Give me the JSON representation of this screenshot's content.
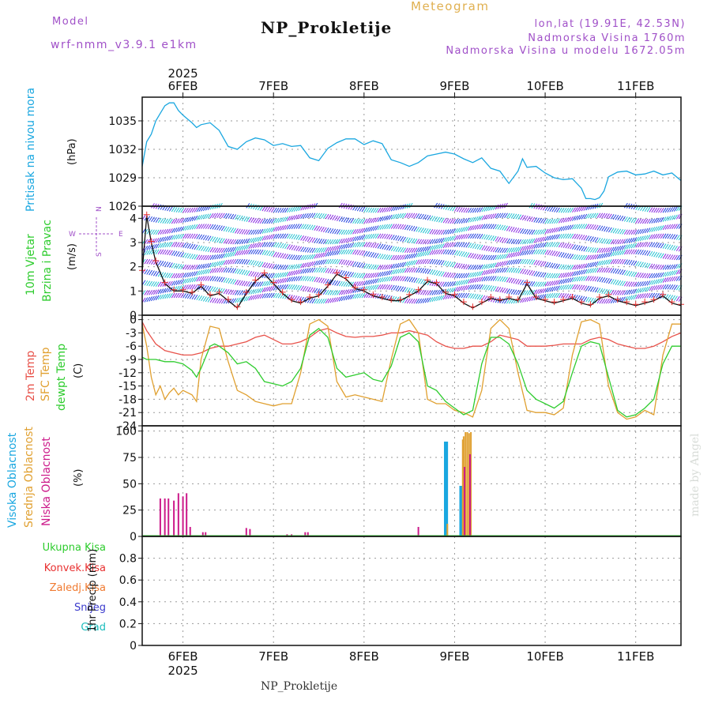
{
  "header": {
    "model_label": "Model",
    "model_name": "wrf-nmm_v3.9.1 e1km",
    "product": "Meteogram",
    "station": "NP_Prokletije",
    "lonlat": "lon,lat (19.91E, 42.53N)",
    "elevation": "Nadmorska Visina 1760m",
    "model_elevation": "Nadmorska Visina u modelu 1672.05m"
  },
  "footer": {
    "station": "NP_Prokletije"
  },
  "watermark": "made by Angel",
  "time_axis": {
    "year": "2025",
    "labels": [
      "6FEB",
      "7FEB",
      "8FEB",
      "9FEB",
      "10FEB",
      "11FEB"
    ],
    "day_positions": [
      6,
      7,
      8,
      9,
      10,
      11
    ],
    "range": [
      5.55,
      11.5
    ]
  },
  "colors": {
    "pressure": "#1aa7e0",
    "t2m": "#e8524a",
    "sfc": "#e0a030",
    "dew": "#2ecc2e",
    "wind_speed": "#111111",
    "gust_marker": "#e83030",
    "high_cloud": "#1aa7e0",
    "mid_cloud": "#e0a030",
    "low_cloud": "#cc1a8a",
    "total_rain": "#2ecc2e",
    "conv_rain": "#e83030",
    "freezing_rain": "#f07a30",
    "snow": "#3a3acc",
    "hail": "#1abcbc",
    "barb_purple": "#8a2be2",
    "barb_blue": "#2040e0",
    "barb_cyan": "#20c0d0"
  },
  "chart_data": [
    {
      "type": "line",
      "panel": "pressure",
      "title": "Pritisak na nivou mora",
      "ylabel": "(hPa)",
      "ylim": [
        1026,
        1037.5
      ],
      "yticks": [
        1026,
        1029,
        1032,
        1035
      ],
      "grid": true,
      "series": [
        {
          "name": "Pritisak na nivou mora",
          "x": [
            5.55,
            5.6,
            5.65,
            5.7,
            5.75,
            5.8,
            5.85,
            5.9,
            5.95,
            6.0,
            6.05,
            6.1,
            6.15,
            6.2,
            6.3,
            6.4,
            6.5,
            6.6,
            6.7,
            6.8,
            6.9,
            7.0,
            7.1,
            7.2,
            7.3,
            7.4,
            7.5,
            7.6,
            7.7,
            7.8,
            7.9,
            8.0,
            8.1,
            8.2,
            8.3,
            8.4,
            8.5,
            8.6,
            8.7,
            8.8,
            8.9,
            9.0,
            9.1,
            9.2,
            9.3,
            9.4,
            9.5,
            9.6,
            9.7,
            9.75,
            9.8,
            9.9,
            10.0,
            10.1,
            10.2,
            10.3,
            10.4,
            10.45,
            10.5,
            10.55,
            10.6,
            10.65,
            10.7,
            10.8,
            10.9,
            11.0,
            11.1,
            11.2,
            11.3,
            11.4,
            11.5
          ],
          "y": [
            1030.2,
            1032.8,
            1033.6,
            1035.0,
            1035.8,
            1036.6,
            1036.9,
            1036.9,
            1036.1,
            1035.6,
            1035.2,
            1034.8,
            1034.3,
            1034.6,
            1034.8,
            1034.0,
            1032.3,
            1032.0,
            1032.8,
            1033.2,
            1033.0,
            1032.4,
            1032.6,
            1032.3,
            1032.4,
            1031.1,
            1030.8,
            1032.1,
            1032.7,
            1033.1,
            1033.1,
            1032.5,
            1032.9,
            1032.6,
            1030.9,
            1030.6,
            1030.2,
            1030.6,
            1031.3,
            1031.5,
            1031.7,
            1031.5,
            1031.0,
            1030.6,
            1031.1,
            1030.0,
            1029.7,
            1028.4,
            1029.7,
            1031.0,
            1030.1,
            1030.2,
            1029.5,
            1029.0,
            1028.8,
            1028.9,
            1027.9,
            1026.8,
            1026.8,
            1026.7,
            1026.9,
            1027.6,
            1029.1,
            1029.6,
            1029.7,
            1029.3,
            1029.4,
            1029.7,
            1029.3,
            1029.5,
            1028.7
          ]
        }
      ]
    },
    {
      "type": "line",
      "panel": "wind",
      "title": "10m Vjetar Brzina i Pravac",
      "ylabel": "(m/s)",
      "ylim": [
        0,
        4.5
      ],
      "yticks": [
        0,
        1,
        2,
        3,
        4
      ],
      "direction_legend": {
        "north": "N",
        "west": "W",
        "east": "E",
        "south": "S"
      },
      "grid": true,
      "series": [
        {
          "name": "wind_speed",
          "x": [
            5.55,
            5.6,
            5.65,
            5.7,
            5.8,
            5.9,
            6.0,
            6.1,
            6.2,
            6.3,
            6.4,
            6.5,
            6.6,
            6.7,
            6.8,
            6.9,
            7.0,
            7.1,
            7.2,
            7.3,
            7.4,
            7.5,
            7.6,
            7.7,
            7.8,
            7.9,
            8.0,
            8.1,
            8.2,
            8.3,
            8.4,
            8.5,
            8.6,
            8.7,
            8.8,
            8.9,
            9.0,
            9.1,
            9.2,
            9.3,
            9.4,
            9.5,
            9.6,
            9.7,
            9.8,
            9.9,
            10.0,
            10.1,
            10.2,
            10.3,
            10.4,
            10.5,
            10.6,
            10.7,
            10.8,
            10.9,
            11.0,
            11.1,
            11.2,
            11.3,
            11.4,
            11.5
          ],
          "y": [
            1.8,
            4.1,
            3.0,
            2.2,
            1.3,
            1.0,
            1.0,
            0.9,
            1.2,
            0.8,
            0.9,
            0.6,
            0.3,
            0.9,
            1.4,
            1.7,
            1.3,
            0.9,
            0.6,
            0.5,
            0.7,
            0.8,
            1.2,
            1.7,
            1.5,
            1.1,
            1.0,
            0.8,
            0.7,
            0.6,
            0.6,
            0.8,
            1.0,
            1.4,
            1.3,
            0.9,
            0.8,
            0.5,
            0.3,
            0.5,
            0.7,
            0.6,
            0.7,
            0.6,
            1.3,
            0.7,
            0.6,
            0.5,
            0.6,
            0.7,
            0.5,
            0.4,
            0.7,
            0.8,
            0.6,
            0.5,
            0.4,
            0.5,
            0.6,
            0.8,
            0.5,
            0.4
          ]
        }
      ]
    },
    {
      "type": "line",
      "panel": "temperature",
      "ylabel": "(C)",
      "ylim": [
        -24,
        1
      ],
      "yticks": [
        0,
        -3,
        -6,
        -9,
        -12,
        -15,
        -18,
        -21,
        -24
      ],
      "grid": true,
      "series": [
        {
          "name": "2m Temp",
          "x": [
            5.55,
            5.6,
            5.7,
            5.8,
            5.9,
            6.0,
            6.1,
            6.2,
            6.3,
            6.4,
            6.5,
            6.6,
            6.7,
            6.8,
            6.9,
            7.0,
            7.1,
            7.2,
            7.3,
            7.4,
            7.5,
            7.6,
            7.7,
            7.8,
            7.9,
            8.0,
            8.1,
            8.2,
            8.3,
            8.4,
            8.5,
            8.6,
            8.7,
            8.8,
            8.9,
            9.0,
            9.1,
            9.2,
            9.3,
            9.4,
            9.5,
            9.6,
            9.7,
            9.8,
            9.9,
            10.0,
            10.1,
            10.2,
            10.3,
            10.4,
            10.5,
            10.6,
            10.7,
            10.8,
            10.9,
            11.0,
            11.1,
            11.2,
            11.3,
            11.4,
            11.5
          ],
          "y": [
            -0.5,
            -2.5,
            -5.5,
            -7.0,
            -7.5,
            -8.0,
            -8.0,
            -7.5,
            -6.5,
            -6.0,
            -6.0,
            -5.5,
            -5.0,
            -4.0,
            -3.5,
            -4.5,
            -5.5,
            -5.5,
            -5.0,
            -4.0,
            -2.5,
            -2.0,
            -3.0,
            -3.8,
            -4.0,
            -3.8,
            -3.8,
            -3.5,
            -3.0,
            -3.0,
            -2.5,
            -3.0,
            -3.5,
            -5.0,
            -6.0,
            -6.5,
            -6.5,
            -6.0,
            -6.0,
            -5.0,
            -3.5,
            -4.0,
            -4.5,
            -6.0,
            -6.0,
            -6.0,
            -5.8,
            -5.5,
            -5.5,
            -5.5,
            -4.5,
            -4.0,
            -4.5,
            -5.5,
            -6.0,
            -6.5,
            -6.5,
            -6.0,
            -5.0,
            -3.8,
            -3.0
          ]
        },
        {
          "name": "SFC Temp",
          "x": [
            5.55,
            5.6,
            5.65,
            5.7,
            5.75,
            5.8,
            5.85,
            5.9,
            5.95,
            6.0,
            6.1,
            6.15,
            6.2,
            6.3,
            6.4,
            6.5,
            6.6,
            6.7,
            6.8,
            6.9,
            7.0,
            7.1,
            7.2,
            7.3,
            7.4,
            7.5,
            7.6,
            7.7,
            7.8,
            7.9,
            8.0,
            8.1,
            8.2,
            8.3,
            8.4,
            8.5,
            8.6,
            8.7,
            8.8,
            8.9,
            9.0,
            9.1,
            9.2,
            9.3,
            9.4,
            9.5,
            9.6,
            9.7,
            9.8,
            9.9,
            10.0,
            10.1,
            10.2,
            10.3,
            10.4,
            10.5,
            10.6,
            10.7,
            10.8,
            10.9,
            11.0,
            11.1,
            11.2,
            11.3,
            11.4,
            11.5
          ],
          "y": [
            -1.0,
            -6.0,
            -13.0,
            -17.0,
            -15.0,
            -18.0,
            -16.5,
            -15.5,
            -17.0,
            -16.0,
            -17.0,
            -18.5,
            -9.0,
            -1.5,
            -2.0,
            -9.5,
            -16.0,
            -17.0,
            -18.5,
            -19.0,
            -19.5,
            -19.0,
            -19.0,
            -12.0,
            -1.0,
            0.0,
            -1.5,
            -14.0,
            -17.5,
            -17.0,
            -17.5,
            -18.0,
            -18.5,
            -9.0,
            -1.0,
            0.0,
            -3.0,
            -18.0,
            -19.0,
            -19.0,
            -20.5,
            -21.0,
            -22.0,
            -16.0,
            -2.0,
            0.0,
            -2.0,
            -12.0,
            -20.5,
            -21.0,
            -21.0,
            -21.5,
            -20.0,
            -8.0,
            -0.5,
            0.0,
            -1.0,
            -15.0,
            -21.0,
            -22.5,
            -22.0,
            -20.5,
            -21.5,
            -8.0,
            -1.0,
            -1.0
          ]
        },
        {
          "name": "dewpt Temp",
          "x": [
            5.55,
            5.6,
            5.7,
            5.8,
            5.9,
            6.0,
            6.1,
            6.15,
            6.2,
            6.3,
            6.35,
            6.4,
            6.5,
            6.6,
            6.7,
            6.8,
            6.9,
            7.0,
            7.1,
            7.2,
            7.3,
            7.4,
            7.5,
            7.6,
            7.7,
            7.8,
            7.9,
            8.0,
            8.1,
            8.2,
            8.3,
            8.4,
            8.5,
            8.6,
            8.7,
            8.8,
            8.9,
            9.0,
            9.1,
            9.2,
            9.3,
            9.4,
            9.5,
            9.6,
            9.7,
            9.8,
            9.9,
            10.0,
            10.1,
            10.2,
            10.3,
            10.4,
            10.5,
            10.6,
            10.7,
            10.8,
            10.9,
            11.0,
            11.1,
            11.2,
            11.3,
            11.4,
            11.5
          ],
          "y": [
            -8.5,
            -9.0,
            -9.0,
            -9.5,
            -9.5,
            -10.0,
            -11.5,
            -13.0,
            -11.0,
            -6.0,
            -5.5,
            -6.0,
            -7.5,
            -10.0,
            -9.5,
            -11.0,
            -14.0,
            -14.5,
            -15.0,
            -14.0,
            -11.0,
            -3.5,
            -2.0,
            -4.0,
            -11.0,
            -13.0,
            -12.5,
            -12.0,
            -13.5,
            -14.0,
            -10.5,
            -4.0,
            -3.0,
            -5.0,
            -15.0,
            -16.0,
            -18.5,
            -20.0,
            -21.5,
            -20.5,
            -10.0,
            -4.0,
            -4.0,
            -5.5,
            -10.0,
            -16.0,
            -18.0,
            -19.0,
            -20.0,
            -18.5,
            -12.0,
            -6.0,
            -5.0,
            -5.5,
            -13.0,
            -20.5,
            -22.0,
            -21.5,
            -20.0,
            -18.0,
            -10.0,
            -6.0,
            -6.0
          ]
        }
      ]
    },
    {
      "type": "bar",
      "panel": "cloud",
      "ylabel": "(%)",
      "ylim": [
        0,
        105
      ],
      "yticks": [
        0,
        25,
        50,
        75,
        100
      ],
      "grid": true,
      "series": [
        {
          "name": "Visoka Oblacnost",
          "x": [
            8.9,
            8.91,
            9.07,
            9.08
          ],
          "values": [
            90,
            90,
            48,
            48
          ]
        },
        {
          "name": "Srednja Oblacnost",
          "x": [
            8.92,
            9.09,
            9.1,
            9.12,
            9.14,
            9.16,
            9.18
          ],
          "values": [
            12,
            92,
            95,
            99,
            99,
            98,
            99
          ]
        },
        {
          "name": "Niska Oblacnost",
          "x": [
            5.75,
            5.8,
            5.84,
            5.9,
            5.95,
            6.0,
            6.04,
            6.08,
            6.22,
            6.25,
            6.4,
            6.7,
            6.74,
            7.15,
            7.2,
            7.35,
            7.38,
            8.6,
            9.11,
            9.17
          ],
          "values": [
            36,
            36,
            36,
            34,
            41,
            38,
            41,
            9,
            4,
            4,
            1,
            8,
            7,
            2,
            2,
            4,
            4,
            9,
            66,
            78
          ]
        }
      ]
    },
    {
      "type": "bar",
      "panel": "precip",
      "ylabel": "1hr Precip (mm)",
      "ylim": [
        0,
        1
      ],
      "yticks": [
        0,
        0.2,
        0.4,
        0.6,
        0.8
      ],
      "grid": true,
      "series": [
        {
          "name": "Ukupna Kisa",
          "x": [],
          "values": []
        },
        {
          "name": "Konvek.Kisa",
          "x": [],
          "values": []
        },
        {
          "name": "Zaledj.Kisa",
          "x": [],
          "values": []
        },
        {
          "name": "Snijeg",
          "x": [],
          "values": []
        },
        {
          "name": "Grad",
          "x": [],
          "values": []
        }
      ]
    }
  ]
}
